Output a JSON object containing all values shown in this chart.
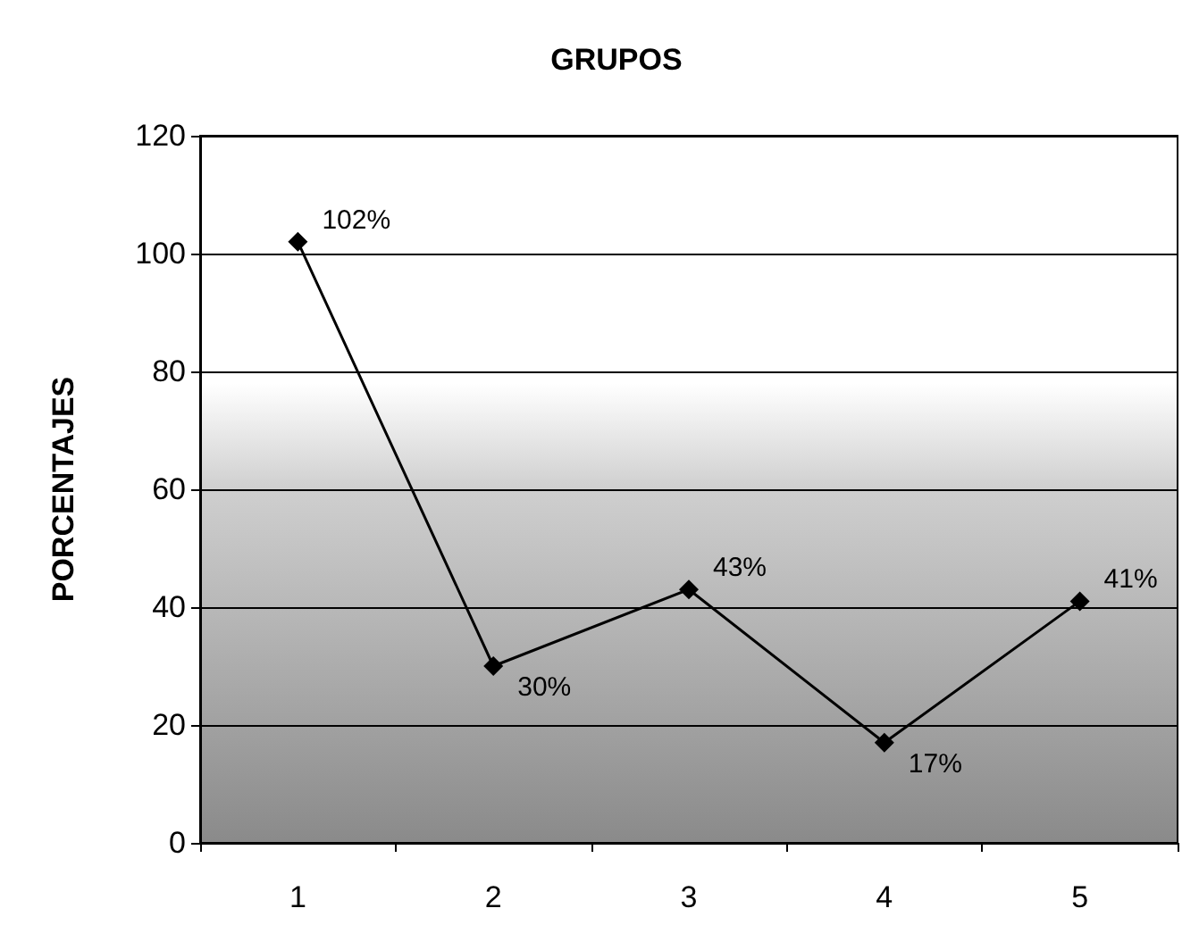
{
  "chart_data": {
    "type": "line",
    "title": "GRUPOS",
    "ylabel": "PORCENTAJES",
    "categories": [
      "1",
      "2",
      "3",
      "4",
      "5"
    ],
    "series": [
      {
        "color": "#000000",
        "values": [
          102,
          30,
          43,
          17,
          41
        ],
        "value_labels": [
          "102%",
          "30%",
          "43%",
          "17%",
          "41%"
        ]
      }
    ],
    "ylim": [
      0,
      120
    ],
    "yticks": [
      0,
      20,
      40,
      60,
      80,
      100,
      120
    ],
    "grid": "y",
    "marker": "diamond",
    "line_style": "solid"
  }
}
